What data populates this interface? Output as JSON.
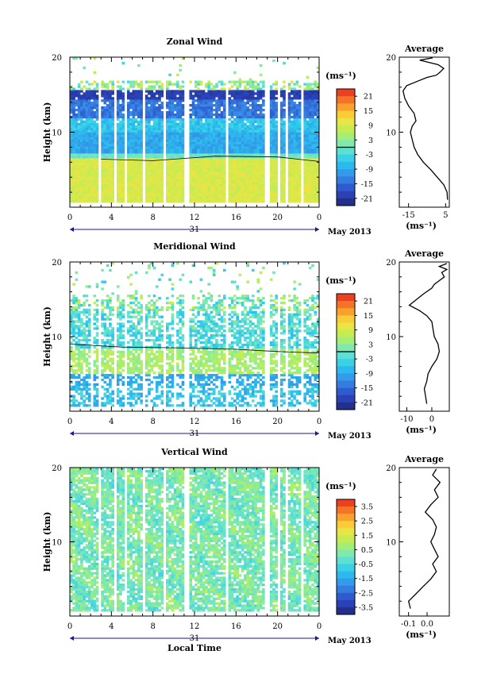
{
  "chart_data": [
    {
      "type": "heatmap",
      "title": "Zonal Wind",
      "ylabel": "Height (km)",
      "yticks": [
        "20",
        "10"
      ],
      "ylim": [
        0,
        20
      ],
      "xticks": [
        "0",
        "4",
        "8",
        "12",
        "16",
        "20",
        "0"
      ],
      "date_day": "31",
      "date_label": "May 2013",
      "colorbar": {
        "unit": "(ms⁻¹)",
        "ticks": [
          "21",
          "15",
          "9",
          "3",
          "-3",
          "-9",
          "-15",
          "-21"
        ],
        "range": [
          -24,
          24
        ]
      },
      "profile": {
        "title": "Average",
        "xticks": [
          "-15",
          "5"
        ],
        "xrange": [
          -20,
          7
        ],
        "xunit": "(ms⁻¹)",
        "yticks": [
          "20",
          "10"
        ],
        "points": [
          [
            6,
            1
          ],
          [
            5.8,
            2
          ],
          [
            4,
            3
          ],
          [
            0.5,
            4
          ],
          [
            -3,
            5
          ],
          [
            -7,
            6
          ],
          [
            -10,
            7
          ],
          [
            -12,
            8
          ],
          [
            -13,
            9
          ],
          [
            -14,
            10
          ],
          [
            -13,
            10.8
          ],
          [
            -11,
            11.5
          ],
          [
            -12,
            12.5
          ],
          [
            -15,
            13.5
          ],
          [
            -17,
            14.5
          ],
          [
            -18,
            15.5
          ],
          [
            -16,
            16.2
          ],
          [
            -10,
            16.8
          ],
          [
            -5,
            17.3
          ],
          [
            0,
            17.6
          ],
          [
            2,
            18
          ],
          [
            4,
            18.5
          ],
          [
            1,
            19
          ],
          [
            -4,
            19.3
          ],
          [
            -9,
            19.6
          ],
          [
            -2,
            19.9
          ]
        ]
      },
      "contours": [
        [
          3,
          6.4
        ],
        [
          8,
          6.2
        ],
        [
          14,
          6.8
        ],
        [
          20,
          6.7
        ],
        [
          24,
          6.1
        ]
      ]
    },
    {
      "type": "heatmap",
      "title": "Meridional Wind",
      "ylabel": "Height (km)",
      "yticks": [
        "20",
        "10"
      ],
      "ylim": [
        0,
        20
      ],
      "xticks": [
        "0",
        "4",
        "8",
        "12",
        "16",
        "20",
        "0"
      ],
      "date_day": "31",
      "date_label": "May 2013",
      "colorbar": {
        "unit": "(ms⁻¹)",
        "ticks": [
          "21",
          "15",
          "9",
          "3",
          "-3",
          "-9",
          "-15",
          "-21"
        ],
        "range": [
          -24,
          24
        ]
      },
      "profile": {
        "title": "Average",
        "xticks": [
          "-10",
          "0"
        ],
        "xrange": [
          -13,
          7
        ],
        "xunit": "(ms⁻¹)",
        "yticks": [
          "20",
          "10"
        ],
        "points": [
          [
            -2,
            1
          ],
          [
            -2.5,
            2
          ],
          [
            -3,
            3
          ],
          [
            -2,
            4
          ],
          [
            -1.5,
            5
          ],
          [
            0,
            6
          ],
          [
            2,
            7
          ],
          [
            3,
            8
          ],
          [
            2.5,
            9
          ],
          [
            1,
            10
          ],
          [
            0.5,
            11
          ],
          [
            0,
            12
          ],
          [
            -2,
            12.8
          ],
          [
            -5,
            13.5
          ],
          [
            -9,
            14.2
          ],
          [
            -6,
            15
          ],
          [
            -3,
            15.8
          ],
          [
            0,
            16.5
          ],
          [
            1,
            17
          ],
          [
            3,
            17.5
          ],
          [
            5,
            18
          ],
          [
            4,
            18.6
          ],
          [
            6,
            19
          ],
          [
            3,
            19.4
          ],
          [
            6,
            19.8
          ]
        ]
      },
      "contours": [
        [
          0,
          9
        ],
        [
          5,
          8.6
        ],
        [
          10,
          8.5
        ],
        [
          16,
          8.3
        ],
        [
          20,
          8
        ],
        [
          24,
          7.8
        ]
      ]
    },
    {
      "type": "heatmap",
      "title": "Vertical Wind",
      "ylabel": "Height (km)",
      "xlabel": "Local Time",
      "yticks": [
        "20",
        "10"
      ],
      "ylim": [
        0,
        20
      ],
      "xticks": [
        "0",
        "4",
        "8",
        "12",
        "16",
        "20",
        "0"
      ],
      "date_day": "31",
      "date_label": "May 2013",
      "colorbar": {
        "unit": "(ms⁻¹)",
        "ticks": [
          "3.5",
          "2.5",
          "1.5",
          "0.5",
          "-0.5",
          "-1.5",
          "-2.5",
          "-3.5"
        ],
        "range": [
          -4,
          4
        ]
      },
      "profile": {
        "title": "Average",
        "xticks": [
          "-0.1",
          "0.0"
        ],
        "xrange": [
          -0.15,
          0.12
        ],
        "xunit": "(ms⁻¹)",
        "yticks": [
          "20",
          "10"
        ],
        "points": [
          [
            -0.09,
            1
          ],
          [
            -0.1,
            2
          ],
          [
            -0.06,
            3
          ],
          [
            -0.02,
            4
          ],
          [
            0.02,
            5
          ],
          [
            0.05,
            6
          ],
          [
            0.03,
            7
          ],
          [
            0.06,
            8
          ],
          [
            0.04,
            9
          ],
          [
            0.02,
            10
          ],
          [
            0.04,
            11
          ],
          [
            0.05,
            12
          ],
          [
            0.03,
            13
          ],
          [
            -0.01,
            14
          ],
          [
            0.02,
            15
          ],
          [
            0.06,
            16
          ],
          [
            0.04,
            17
          ],
          [
            0.07,
            18
          ],
          [
            0.03,
            19
          ],
          [
            0.05,
            19.8
          ]
        ]
      },
      "contours": []
    }
  ]
}
